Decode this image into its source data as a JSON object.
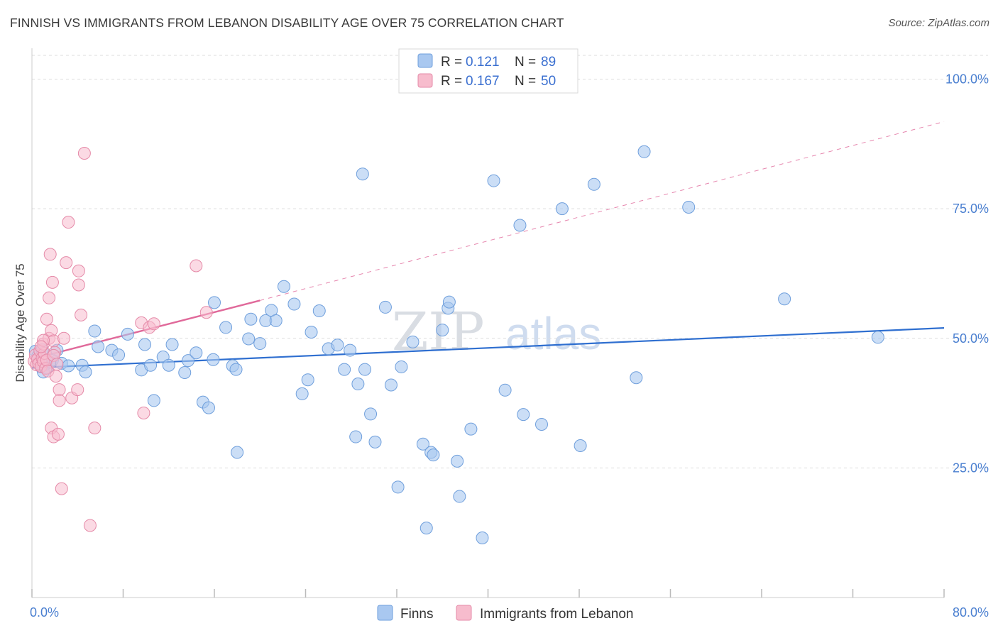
{
  "title": "FINNISH VS IMMIGRANTS FROM LEBANON DISABILITY AGE OVER 75 CORRELATION CHART",
  "source": "Source: ZipAtlas.com",
  "watermark": {
    "left": "ZIP",
    "right": "atlas"
  },
  "colors": {
    "blue_fill": "#a9c8f0",
    "blue_stroke": "#6f9fdc",
    "blue_line": "#2f6fd0",
    "pink_fill": "#f7bccd",
    "pink_stroke": "#e58aa8",
    "pink_line": "#e0699a",
    "tick_label": "#4a7fd0",
    "grid": "#dddddd"
  },
  "legend": {
    "rows": [
      {
        "r_label": "R =",
        "r_value": "0.121",
        "n_label": "N =",
        "n_value": "89"
      },
      {
        "r_label": "R =",
        "r_value": "0.167",
        "n_label": "N =",
        "n_value": "50"
      }
    ]
  },
  "bottom_legend": [
    "Finns",
    "Immigrants from Lebanon"
  ],
  "chart_data": {
    "type": "scatter",
    "title": "FINNISH VS IMMIGRANTS FROM LEBANON DISABILITY AGE OVER 75 CORRELATION CHART",
    "xlabel": "",
    "ylabel": "Disability Age Over 75",
    "xlim": [
      0,
      80
    ],
    "ylim": [
      0,
      105
    ],
    "x_tick_labels": [
      "0.0%",
      "80.0%"
    ],
    "y_ticks": [
      25,
      50,
      75,
      100
    ],
    "y_tick_labels": [
      "25.0%",
      "50.0%",
      "75.0%",
      "100.0%"
    ],
    "series": [
      {
        "name": "Finns",
        "r": 0.121,
        "n": 89,
        "trend": {
          "x0": 0,
          "y0": 44.3,
          "x1": 80,
          "y1": 52.0,
          "style": "solid"
        },
        "points": [
          [
            0.3,
            47.5
          ],
          [
            0.5,
            46.5
          ],
          [
            0.6,
            45.2
          ],
          [
            0.8,
            44.5
          ],
          [
            0.9,
            47.8
          ],
          [
            1.0,
            43.5
          ],
          [
            1.2,
            45.0
          ],
          [
            1.3,
            44.3
          ],
          [
            1.6,
            45.4
          ],
          [
            1.8,
            45.8
          ],
          [
            2.2,
            47.7
          ],
          [
            2.6,
            45.2
          ],
          [
            3.2,
            44.7
          ],
          [
            4.4,
            44.8
          ],
          [
            4.7,
            43.5
          ],
          [
            5.8,
            48.4
          ],
          [
            7.0,
            47.7
          ],
          [
            7.6,
            46.8
          ],
          [
            8.4,
            50.8
          ],
          [
            5.5,
            51.4
          ],
          [
            9.6,
            43.9
          ],
          [
            9.9,
            48.8
          ],
          [
            10.4,
            44.8
          ],
          [
            10.7,
            38.0
          ],
          [
            11.5,
            46.4
          ],
          [
            12.0,
            44.8
          ],
          [
            12.3,
            48.8
          ],
          [
            13.4,
            43.4
          ],
          [
            13.7,
            45.7
          ],
          [
            14.4,
            47.2
          ],
          [
            15.0,
            37.7
          ],
          [
            15.5,
            36.6
          ],
          [
            15.9,
            45.9
          ],
          [
            16.0,
            56.9
          ],
          [
            17.0,
            52.1
          ],
          [
            17.6,
            44.7
          ],
          [
            17.9,
            44.0
          ],
          [
            18.0,
            28.0
          ],
          [
            19.0,
            49.9
          ],
          [
            19.2,
            53.7
          ],
          [
            20.0,
            49.0
          ],
          [
            20.5,
            53.4
          ],
          [
            21.0,
            55.4
          ],
          [
            21.4,
            53.4
          ],
          [
            22.1,
            60.0
          ],
          [
            23.0,
            56.6
          ],
          [
            23.7,
            39.3
          ],
          [
            24.2,
            42.0
          ],
          [
            24.5,
            51.2
          ],
          [
            25.2,
            55.3
          ],
          [
            26.0,
            48.0
          ],
          [
            26.8,
            48.7
          ],
          [
            27.9,
            47.7
          ],
          [
            27.4,
            44.0
          ],
          [
            28.4,
            31.0
          ],
          [
            28.6,
            41.2
          ],
          [
            29.0,
            81.7
          ],
          [
            29.2,
            44.0
          ],
          [
            29.7,
            35.4
          ],
          [
            30.1,
            30.0
          ],
          [
            31.0,
            56.0
          ],
          [
            31.5,
            41.0
          ],
          [
            32.1,
            21.3
          ],
          [
            32.4,
            44.5
          ],
          [
            33.4,
            49.3
          ],
          [
            34.3,
            29.6
          ],
          [
            34.6,
            13.4
          ],
          [
            35.0,
            28.0
          ],
          [
            35.2,
            27.5
          ],
          [
            36.0,
            51.6
          ],
          [
            36.5,
            55.8
          ],
          [
            36.6,
            57.0
          ],
          [
            37.3,
            26.3
          ],
          [
            37.5,
            19.5
          ],
          [
            38.5,
            32.5
          ],
          [
            39.5,
            11.5
          ],
          [
            40.5,
            80.4
          ],
          [
            41.5,
            40.0
          ],
          [
            42.8,
            71.8
          ],
          [
            43.1,
            35.3
          ],
          [
            44.7,
            33.4
          ],
          [
            46.5,
            75.0
          ],
          [
            48.1,
            29.3
          ],
          [
            49.3,
            79.7
          ],
          [
            53.7,
            86.0
          ],
          [
            53.0,
            42.4
          ],
          [
            57.6,
            75.3
          ],
          [
            66.0,
            57.6
          ],
          [
            74.2,
            50.2
          ]
        ]
      },
      {
        "name": "Immigrants from Lebanon",
        "r": 0.167,
        "n": 50,
        "trend": {
          "x0": 0,
          "y0": 46.0,
          "x1": 20,
          "y1": 57.3,
          "style": "solid",
          "dashed_to": {
            "x": 80,
            "y": 91.8
          }
        },
        "points": [
          [
            0.2,
            45.6
          ],
          [
            0.3,
            46.8
          ],
          [
            0.4,
            44.9
          ],
          [
            0.5,
            46.0
          ],
          [
            0.6,
            45.1
          ],
          [
            0.7,
            47.6
          ],
          [
            0.8,
            44.6
          ],
          [
            0.9,
            46.2
          ],
          [
            1.0,
            45.5
          ],
          [
            1.1,
            47.1
          ],
          [
            1.2,
            44.2
          ],
          [
            1.3,
            45.8
          ],
          [
            1.4,
            43.7
          ],
          [
            1.0,
            48.9
          ],
          [
            1.5,
            50.0
          ],
          [
            1.7,
            51.5
          ],
          [
            1.3,
            53.7
          ],
          [
            1.5,
            57.8
          ],
          [
            1.8,
            60.8
          ],
          [
            1.6,
            66.2
          ],
          [
            1.9,
            49.5
          ],
          [
            2.0,
            47.3
          ],
          [
            2.1,
            42.7
          ],
          [
            2.4,
            40.1
          ],
          [
            2.4,
            38.0
          ],
          [
            1.7,
            32.7
          ],
          [
            1.9,
            31.0
          ],
          [
            2.3,
            31.5
          ],
          [
            2.6,
            21.0
          ],
          [
            2.8,
            50.0
          ],
          [
            3.0,
            64.6
          ],
          [
            3.2,
            72.4
          ],
          [
            3.5,
            38.5
          ],
          [
            4.0,
            40.1
          ],
          [
            4.1,
            60.3
          ],
          [
            4.1,
            63.0
          ],
          [
            4.3,
            54.5
          ],
          [
            4.6,
            85.7
          ],
          [
            5.1,
            13.9
          ],
          [
            5.5,
            32.7
          ],
          [
            9.8,
            35.6
          ],
          [
            9.6,
            53.0
          ],
          [
            10.3,
            52.1
          ],
          [
            10.7,
            52.8
          ],
          [
            14.4,
            64.0
          ],
          [
            15.3,
            55.0
          ],
          [
            1.0,
            49.6
          ],
          [
            0.8,
            48.4
          ],
          [
            1.9,
            46.7
          ],
          [
            2.2,
            45.0
          ]
        ]
      }
    ]
  }
}
